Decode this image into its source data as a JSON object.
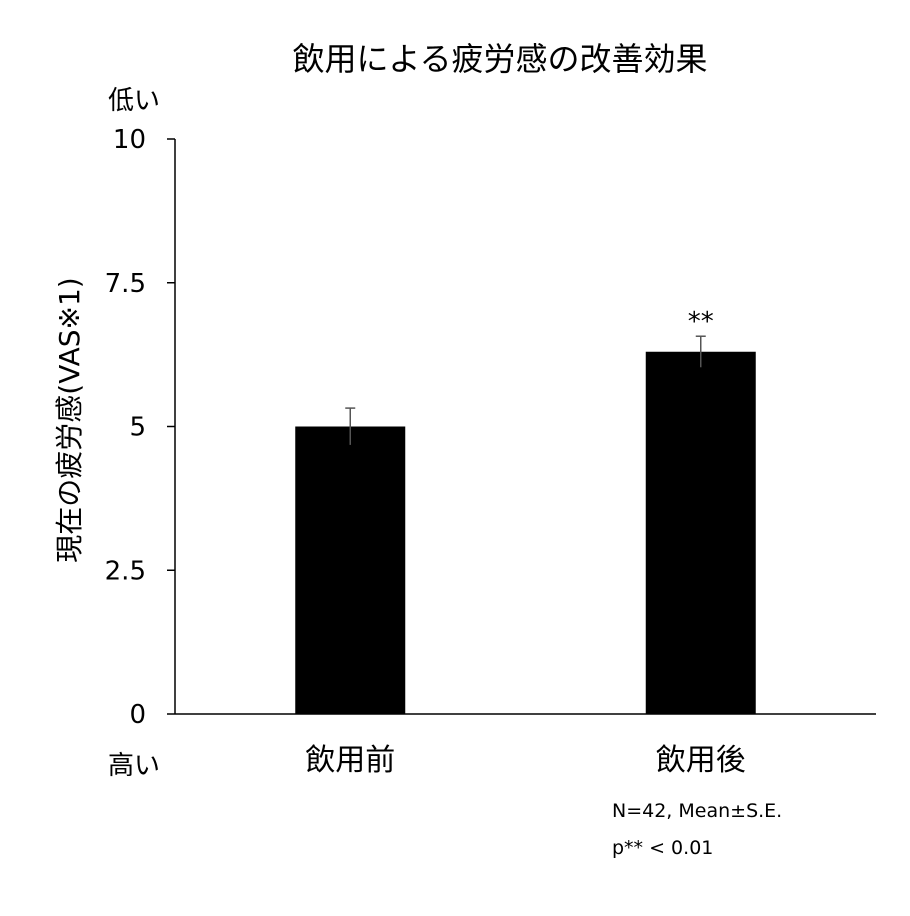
{
  "chart_data": {
    "type": "bar",
    "title": "飲用による疲労感の改善効果",
    "ylabel": "現在の疲労感(VAS※1)",
    "categories": [
      "飲用前",
      "飲用後"
    ],
    "values": [
      5.0,
      6.3
    ],
    "error": [
      0.32,
      0.27
    ],
    "significance": [
      "",
      "**"
    ],
    "yticks": [
      "0",
      "2.5",
      "5",
      "7.5",
      "10"
    ],
    "ylim": [
      0,
      10
    ],
    "y_top_label": "低い",
    "y_bottom_label": "高い",
    "notes": [
      "N=42, Mean±S.E.",
      "p** < 0.01"
    ],
    "bar_color": "#000000",
    "grid": false,
    "legend": "none"
  }
}
